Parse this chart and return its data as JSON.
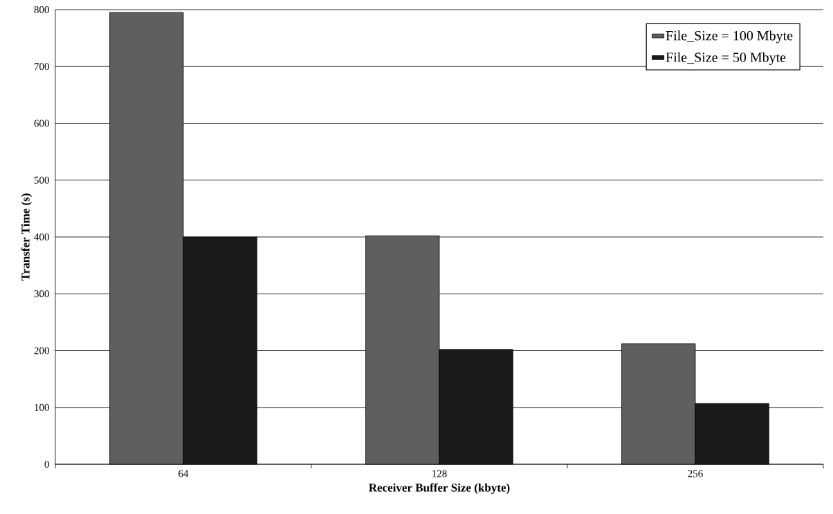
{
  "chart_data": {
    "type": "bar",
    "xlabel": "Receiver Buffer Size (kbyte)",
    "ylabel": "Transfer Time (s)",
    "categories": [
      "64",
      "128",
      "256"
    ],
    "series": [
      {
        "name": "File_Size = 100 Mbyte",
        "color": "#5f5f5f",
        "values": [
          795,
          402,
          212
        ]
      },
      {
        "name": "File_Size = 50 Mbyte",
        "color": "#1a1a1a",
        "values": [
          400,
          202,
          107
        ]
      }
    ],
    "ylim": [
      0,
      800
    ],
    "yticks": [
      0,
      100,
      200,
      300,
      400,
      500,
      600,
      700,
      800
    ],
    "grid": "y",
    "legend": "top right"
  }
}
